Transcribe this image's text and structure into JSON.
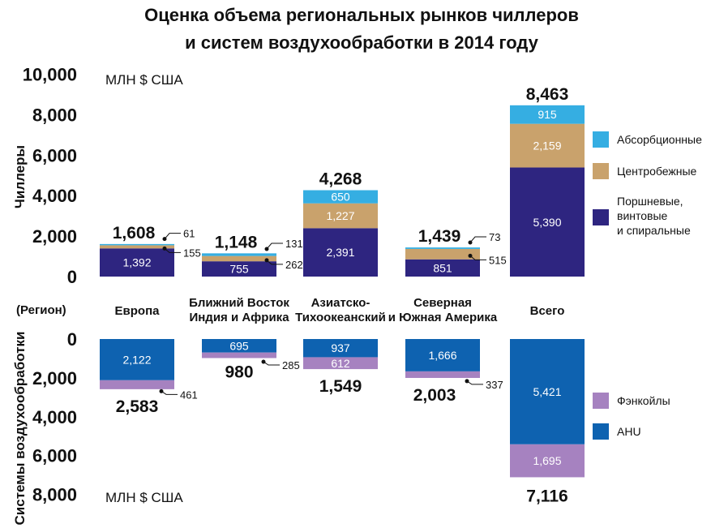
{
  "chart_data": [
    {
      "type": "bar",
      "title": "Оценка объема региональных рынков чиллеров и систем воздухообработки в 2014 году",
      "title_lines": [
        "Оценка объема региональных рынков чиллеров",
        "и систем воздухообработки в 2014 году"
      ],
      "ylabel": "Чиллеры",
      "unit": "МЛН $ США",
      "ylim": [
        0,
        10000
      ],
      "yticks": [
        "10,000",
        "8,000",
        "6,000",
        "4,000",
        "2,000",
        "0"
      ],
      "categories": [
        "Европа",
        "Ближний Восток Индия и Африка",
        "Азиатско-Тихоокеанский",
        "Северная и Южная Америка",
        "Всего"
      ],
      "category_lines": [
        [
          "Европа"
        ],
        [
          "Ближний Восток",
          "Индия и Африка"
        ],
        [
          "Азиатско-",
          "Тихоокеанский"
        ],
        [
          "Северная",
          "и Южная Америка"
        ],
        [
          "Всего"
        ]
      ],
      "category_axis_label": "(Регион)",
      "series": [
        {
          "name": "Поршневые, винтовые и спиральные",
          "name_lines": [
            "Поршневые,",
            "винтовые",
            "и спиральные"
          ],
          "color": "#2e2580",
          "values": [
            1392,
            755,
            2391,
            851,
            5390
          ],
          "labels": [
            "1,392",
            "755",
            "2,391",
            "851",
            "5,390"
          ]
        },
        {
          "name": "Центробежные",
          "name_lines": [
            "Центробежные"
          ],
          "color": "#c9a26c",
          "values": [
            155,
            262,
            1227,
            515,
            2159
          ],
          "labels": [
            "155",
            "262",
            "1,227",
            "515",
            "2,159"
          ]
        },
        {
          "name": "Абсорбционные",
          "name_lines": [
            "Абсорбционные"
          ],
          "color": "#35aee2",
          "values": [
            61,
            131,
            650,
            73,
            915
          ],
          "labels": [
            "61",
            "131",
            "650",
            "73",
            "915"
          ]
        }
      ],
      "totals": [
        "1,608",
        "1,148",
        "4,268",
        "1,439",
        "8,463"
      ],
      "legend": "right"
    },
    {
      "type": "bar",
      "ylabel": "Системы воздухообработки",
      "unit": "МЛН $ США",
      "ylim": [
        0,
        8000
      ],
      "yticks": [
        "0",
        "2,000",
        "4,000",
        "6,000",
        "8,000"
      ],
      "direction": "downward",
      "categories": [
        "Европа",
        "Ближний Восток Индия и Африка",
        "Азиатско-Тихоокеанский",
        "Северная и Южная Америка",
        "Всего"
      ],
      "series": [
        {
          "name": "AHU",
          "name_lines": [
            "AHU"
          ],
          "color": "#0e62b0",
          "values": [
            2122,
            695,
            937,
            1666,
            5421
          ],
          "labels": [
            "2,122",
            "695",
            "937",
            "1,666",
            "5,421"
          ]
        },
        {
          "name": "Фэнкойлы",
          "name_lines": [
            "Фэнкойлы"
          ],
          "color": "#a682c0",
          "values": [
            461,
            285,
            612,
            337,
            1695
          ],
          "labels": [
            "461",
            "285",
            "612",
            "337",
            "1,695"
          ]
        }
      ],
      "totals": [
        "2,583",
        "980",
        "1,549",
        "2,003",
        "7,116"
      ],
      "legend": "right"
    }
  ]
}
